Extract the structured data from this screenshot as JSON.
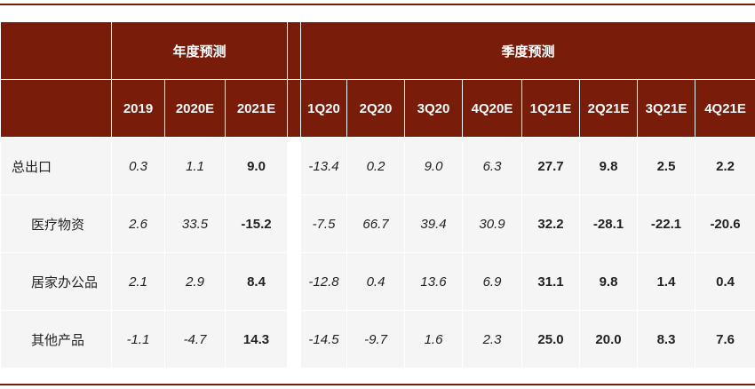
{
  "table": {
    "group_headers": [
      "年度预测",
      "季度预测"
    ],
    "columns": [
      {
        "label": "2019",
        "bold": false
      },
      {
        "label": "2020E",
        "bold": false
      },
      {
        "label": "2021E",
        "bold": true
      },
      {
        "label": "1Q20",
        "bold": false
      },
      {
        "label": "2Q20",
        "bold": false
      },
      {
        "label": "3Q20",
        "bold": false
      },
      {
        "label": "4Q20E",
        "bold": false
      },
      {
        "label": "1Q21E",
        "bold": true
      },
      {
        "label": "2Q21E",
        "bold": true
      },
      {
        "label": "3Q21E",
        "bold": true
      },
      {
        "label": "4Q21E",
        "bold": true
      }
    ],
    "rows": [
      {
        "label": "总出口",
        "indent": false,
        "values": [
          "0.3",
          "1.1",
          "9.0",
          "-13.4",
          "0.2",
          "9.0",
          "6.3",
          "27.7",
          "9.8",
          "2.5",
          "2.2"
        ]
      },
      {
        "label": "医疗物资",
        "indent": true,
        "values": [
          "2.6",
          "33.5",
          "-15.2",
          "-7.5",
          "66.7",
          "39.4",
          "30.9",
          "32.2",
          "-28.1",
          "-22.1",
          "-20.6"
        ]
      },
      {
        "label": "居家办公品",
        "indent": true,
        "values": [
          "2.1",
          "2.9",
          "8.4",
          "-12.8",
          "0.4",
          "13.6",
          "6.9",
          "31.1",
          "9.8",
          "1.4",
          "0.4"
        ]
      },
      {
        "label": "其他产品",
        "indent": true,
        "values": [
          "-1.1",
          "-4.7",
          "14.3",
          "-14.5",
          "-9.7",
          "1.6",
          "2.3",
          "25.0",
          "20.0",
          "8.3",
          "7.6"
        ]
      }
    ]
  }
}
